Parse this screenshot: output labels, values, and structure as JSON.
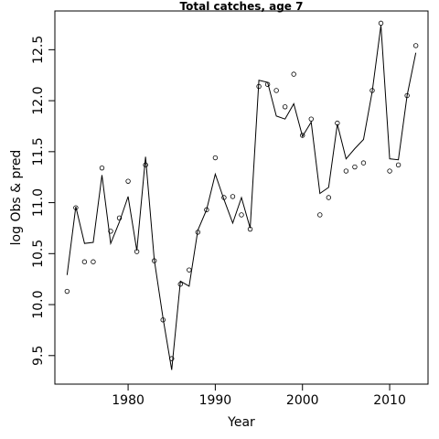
{
  "chart_data": {
    "type": "line",
    "title": "Total catches, age 7",
    "xlabel": "Year",
    "ylabel": "log Obs & pred",
    "xlim": [
      1971.6,
      2014.4
    ],
    "ylim": [
      9.22,
      12.88
    ],
    "x_ticks": [
      1980,
      1990,
      2000,
      2010
    ],
    "y_ticks": [
      9.5,
      10.0,
      10.5,
      11.0,
      11.5,
      12.0,
      12.5
    ],
    "x_tick_labels": [
      "1980",
      "1990",
      "2000",
      "2010"
    ],
    "y_tick_labels": [
      "9.5",
      "10.0",
      "10.5",
      "11.0",
      "11.5",
      "12.0",
      "12.5"
    ],
    "grid": false,
    "legend": "none",
    "colors": {
      "line": "#000000",
      "points": "#000000",
      "axes": "#000000"
    },
    "series": [
      {
        "kind": "points",
        "x": [
          1973,
          1974,
          1975,
          1976,
          1977,
          1978,
          1979,
          1980,
          1981,
          1982,
          1983,
          1984,
          1985,
          1986,
          1987,
          1988,
          1989,
          1990,
          1991,
          1992,
          1993,
          1994,
          1995,
          1996,
          1997,
          1998,
          1999,
          2000,
          2001,
          2002,
          2003,
          2004,
          2005,
          2006,
          2007,
          2008,
          2009,
          2010,
          2011,
          2012,
          2013
        ],
        "values": [
          10.13,
          10.95,
          10.42,
          10.42,
          11.34,
          10.72,
          10.85,
          11.21,
          10.52,
          11.37,
          10.43,
          9.85,
          9.47,
          10.2,
          10.34,
          10.71,
          10.93,
          11.44,
          11.05,
          11.06,
          10.88,
          10.74,
          12.14,
          12.16,
          12.1,
          11.94,
          12.26,
          11.66,
          11.82,
          10.88,
          11.05,
          11.78,
          11.31,
          11.35,
          11.39,
          12.1,
          12.76,
          11.31,
          11.37,
          12.05,
          12.54
        ]
      },
      {
        "kind": "line",
        "x": [
          1973,
          1974,
          1975,
          1976,
          1977,
          1978,
          1979,
          1980,
          1981,
          1982,
          1983,
          1984,
          1985,
          1986,
          1987,
          1988,
          1989,
          1990,
          1991,
          1992,
          1993,
          1994,
          1995,
          1996,
          1997,
          1998,
          1999,
          2000,
          2001,
          2002,
          2003,
          2004,
          2005,
          2006,
          2007,
          2008,
          2009,
          2010,
          2011,
          2012,
          2013
        ],
        "values": [
          10.29,
          10.96,
          10.6,
          10.61,
          11.27,
          10.6,
          10.81,
          11.06,
          10.53,
          11.45,
          10.44,
          9.87,
          9.36,
          10.23,
          10.18,
          10.73,
          10.93,
          11.28,
          11.03,
          10.8,
          11.05,
          10.75,
          12.2,
          12.18,
          11.85,
          11.82,
          11.97,
          11.65,
          11.79,
          11.09,
          11.15,
          11.77,
          11.43,
          11.53,
          11.62,
          12.09,
          12.74,
          11.43,
          11.42,
          12.05,
          12.47
        ]
      }
    ]
  }
}
